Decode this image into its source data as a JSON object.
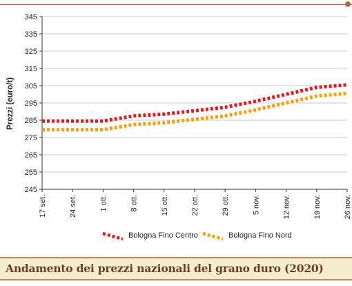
{
  "chart_data": {
    "type": "line",
    "title": "Andamento dei prezzi nazionali del grano duro (2020)",
    "ylabel": "Prezzi (euro/t)",
    "xlabel": "",
    "ylim": [
      245,
      345
    ],
    "yticks": [
      245,
      255,
      265,
      275,
      285,
      295,
      305,
      315,
      325,
      335,
      345
    ],
    "grid": "horizontal",
    "legend_position": "bottom",
    "categories": [
      "17 set.",
      "24 set.",
      "1 ott.",
      "8 ott.",
      "15 ott.",
      "22 ott.",
      "29 ott.",
      "5 nov.",
      "12 nov.",
      "19 nov.",
      "26 nov."
    ],
    "series": [
      {
        "name": "Bologna Fino Centro",
        "color": "#e01b22",
        "values": [
          284.5,
          284.5,
          284.5,
          287.5,
          288.5,
          290.5,
          292.5,
          296,
          300,
          304,
          305.5
        ]
      },
      {
        "name": "Bologna Fino Nord",
        "color": "#f5a00c",
        "values": [
          279.5,
          279.5,
          279.5,
          282.5,
          283.5,
          285.5,
          287.5,
          291,
          295,
          299,
          300.5
        ]
      }
    ]
  },
  "footer": {
    "title": "Andamento dei prezzi nazionali del grano duro (2020)"
  }
}
